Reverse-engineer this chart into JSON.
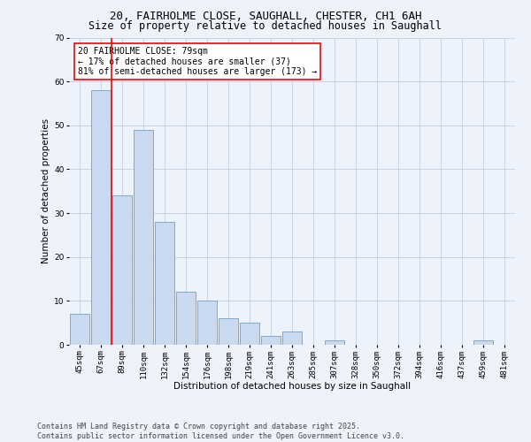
{
  "title1": "20, FAIRHOLME CLOSE, SAUGHALL, CHESTER, CH1 6AH",
  "title2": "Size of property relative to detached houses in Saughall",
  "xlabel": "Distribution of detached houses by size in Saughall",
  "ylabel": "Number of detached properties",
  "categories": [
    "45sqm",
    "67sqm",
    "89sqm",
    "110sqm",
    "132sqm",
    "154sqm",
    "176sqm",
    "198sqm",
    "219sqm",
    "241sqm",
    "263sqm",
    "285sqm",
    "307sqm",
    "328sqm",
    "350sqm",
    "372sqm",
    "394sqm",
    "416sqm",
    "437sqm",
    "459sqm",
    "481sqm"
  ],
  "values": [
    7,
    58,
    34,
    49,
    28,
    12,
    10,
    6,
    5,
    2,
    3,
    0,
    1,
    0,
    0,
    0,
    0,
    0,
    0,
    1,
    0
  ],
  "bar_color": "#c9d9f0",
  "bar_edge_color": "#7aaad0",
  "vline_x": 1.5,
  "vline_color": "red",
  "annotation_text": "20 FAIRHOLME CLOSE: 79sqm\n← 17% of detached houses are smaller (37)\n81% of semi-detached houses are larger (173) →",
  "annotation_box_color": "white",
  "annotation_box_edge": "red",
  "ylim": [
    0,
    70
  ],
  "yticks": [
    0,
    10,
    20,
    30,
    40,
    50,
    60,
    70
  ],
  "footer": "Contains HM Land Registry data © Crown copyright and database right 2025.\nContains public sector information licensed under the Open Government Licence v3.0.",
  "bg_color": "#eef2fb",
  "grid_color": "#c8d4e8",
  "title_fontsize": 9,
  "title2_fontsize": 8.5,
  "axis_label_fontsize": 7.5,
  "tick_fontsize": 6.5,
  "footer_fontsize": 6,
  "annotation_fontsize": 7
}
